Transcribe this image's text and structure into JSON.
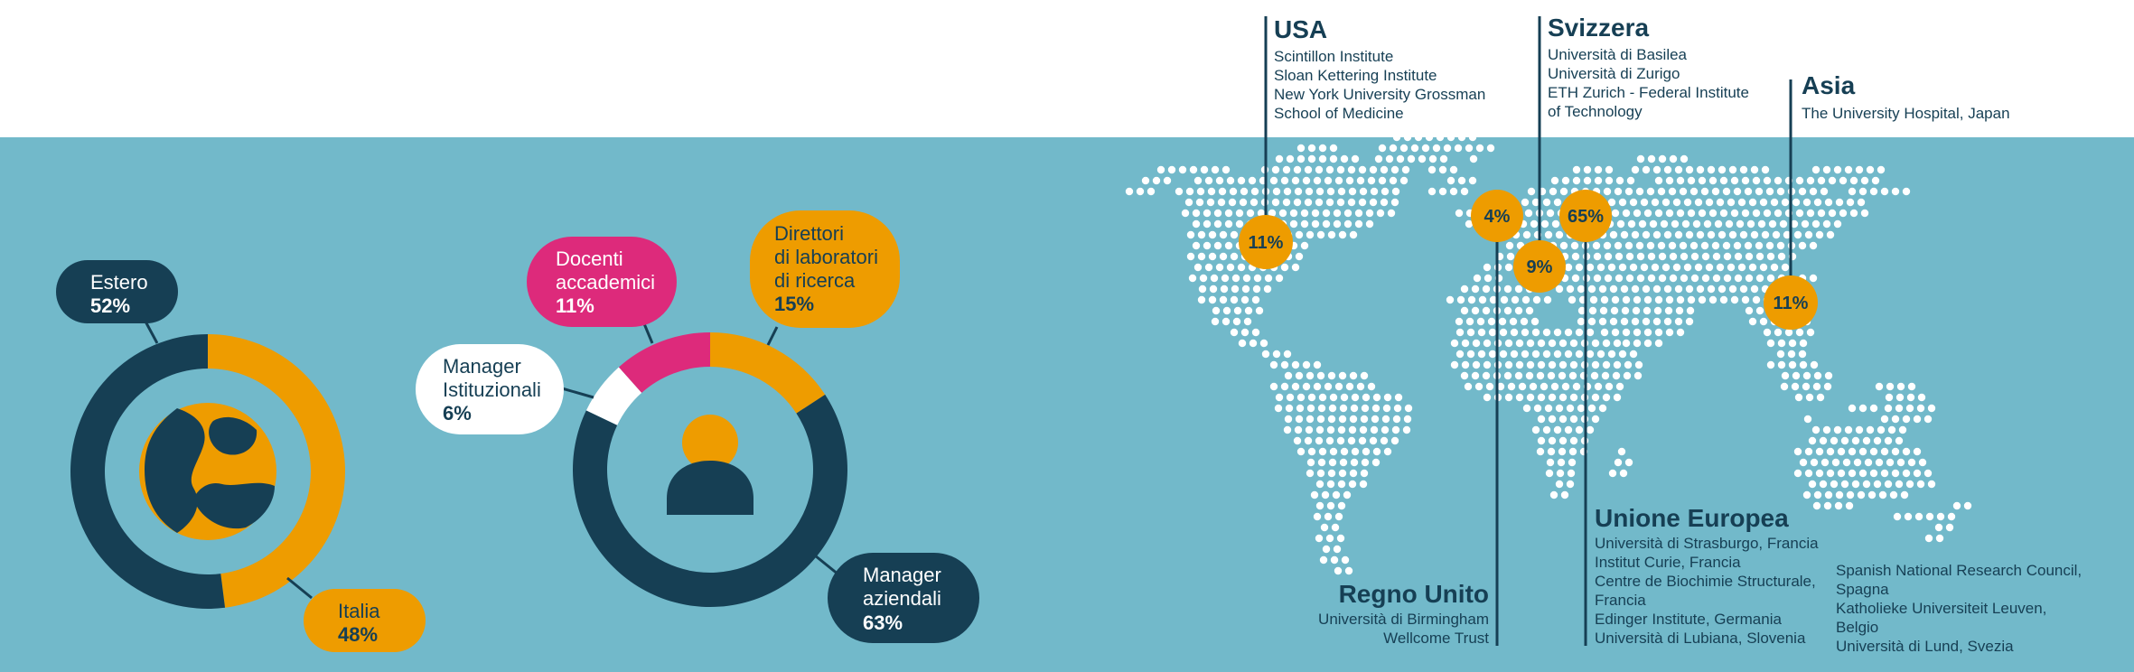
{
  "chart_data": [
    {
      "type": "pie",
      "categories": [
        "Estero",
        "Italia"
      ],
      "values": [
        52,
        48
      ],
      "labels": [
        "52%",
        "48%"
      ],
      "colors": [
        "#163f54",
        "#ee9c00"
      ]
    },
    {
      "type": "pie",
      "categories": [
        "Manager aziendali",
        "Manager Istituzionali",
        "Docenti accademici",
        "Direttori di laboratori di ricerca"
      ],
      "values": [
        63,
        6,
        11,
        15
      ],
      "labels": [
        "63%",
        "6%",
        "11%",
        "15%"
      ],
      "colors": [
        "#163f54",
        "#ffffff",
        "#dd2a7b",
        "#ee9c00"
      ]
    }
  ],
  "donut1": {
    "estero": {
      "line1": "Estero",
      "pct": "52%"
    },
    "italia": {
      "line1": "Italia",
      "pct": "48%"
    }
  },
  "donut2": {
    "aziendali": {
      "line1": "Manager",
      "line2": "aziendali",
      "pct": "63%"
    },
    "istituzionali": {
      "line1": "Manager",
      "line2": "Istituzionali",
      "pct": "6%"
    },
    "docenti": {
      "line1": "Docenti",
      "line2": "accademici",
      "pct": "11%"
    },
    "direttori": {
      "line1": "Direttori",
      "line2": "di laboratori",
      "line3": "di ricerca",
      "pct": "15%"
    }
  },
  "map": {
    "regions": {
      "usa": {
        "title": "USA",
        "items": [
          "Scintillon Institute",
          "Sloan Kettering Institute",
          "New York University Grossman",
          "School of Medicine"
        ],
        "pct": "11%"
      },
      "svizzera": {
        "title": "Svizzera",
        "items": [
          "Università di Basilea",
          "Università di Zurigo",
          "ETH Zurich - Federal Institute",
          "of Technology"
        ],
        "pct": "9%"
      },
      "asia": {
        "title": "Asia",
        "items": [
          "The University Hospital, Japan"
        ],
        "pct": "11%"
      },
      "regno_unito": {
        "title": "Regno Unito",
        "items": [
          "Università di Birmingham",
          "Wellcome Trust"
        ],
        "pct": "4%"
      },
      "ue": {
        "title": "Unione Europea",
        "items": [
          "Università di Strasburgo, Francia",
          "Institut Curie, Francia",
          "Centre de Biochimie Structurale,",
          "Francia",
          "Edinger Institute, Germania",
          "Università di Lubiana, Slovenia"
        ],
        "pct": "65%"
      },
      "ue_extra": {
        "items": [
          "Spanish National Research Council,",
          "Spagna",
          "Katholieke Universiteit Leuven,",
          "Belgio",
          "Università di Lund, Svezia"
        ]
      }
    },
    "colors": {
      "dots": "#ffffff",
      "marker": "#ee9c00",
      "line": "#163f54",
      "band": "#72b9ca"
    }
  },
  "icons": {
    "donut1": "globe-icon",
    "donut2": "person-icon"
  }
}
